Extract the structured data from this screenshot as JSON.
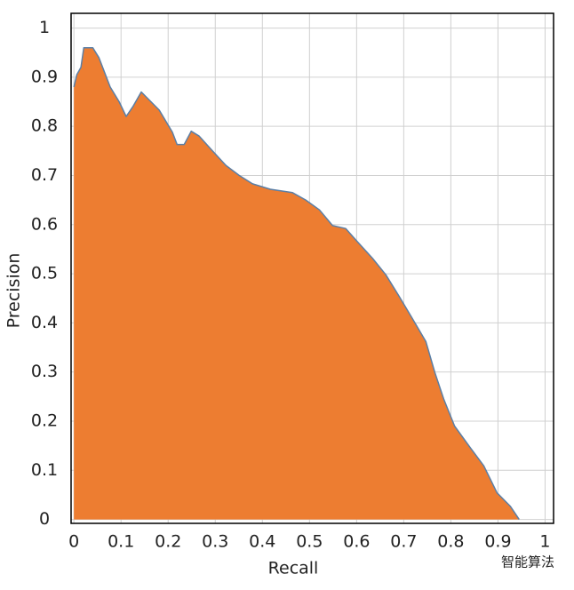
{
  "chart_data": {
    "type": "area",
    "x_label": "Recall",
    "y_label": "Precision",
    "watermark": "智能算法",
    "x": [
      0,
      0.006,
      0.015,
      0.021,
      0.04,
      0.053,
      0.077,
      0.096,
      0.111,
      0.125,
      0.143,
      0.181,
      0.209,
      0.219,
      0.234,
      0.249,
      0.266,
      0.294,
      0.323,
      0.351,
      0.379,
      0.417,
      0.464,
      0.492,
      0.521,
      0.549,
      0.577,
      0.6,
      0.634,
      0.662,
      0.691,
      0.719,
      0.747,
      0.766,
      0.785,
      0.808,
      0.842,
      0.87,
      0.898,
      0.926,
      0.945
    ],
    "series": [
      {
        "name": "Precision",
        "color": "#ed7d31",
        "line_color": "#5b7fa6",
        "values": [
          0.88,
          0.905,
          0.92,
          0.96,
          0.96,
          0.94,
          0.88,
          0.85,
          0.82,
          0.84,
          0.87,
          0.833,
          0.788,
          0.763,
          0.763,
          0.79,
          0.78,
          0.75,
          0.72,
          0.7,
          0.683,
          0.672,
          0.665,
          0.65,
          0.63,
          0.598,
          0.592,
          0.567,
          0.531,
          0.498,
          0.453,
          0.408,
          0.362,
          0.299,
          0.245,
          0.19,
          0.145,
          0.109,
          0.054,
          0.027,
          0
        ]
      }
    ],
    "xlim": [
      -0.006,
      1.018
    ],
    "ylim": [
      -0.008,
      1.03
    ],
    "xticks": [
      0,
      0.1,
      0.2,
      0.3,
      0.4,
      0.5,
      0.6,
      0.7,
      0.8,
      0.9,
      1
    ],
    "yticks": [
      0,
      0.1,
      0.2,
      0.3,
      0.4,
      0.5,
      0.6,
      0.7,
      0.8,
      0.9,
      1
    ],
    "grid": true
  }
}
